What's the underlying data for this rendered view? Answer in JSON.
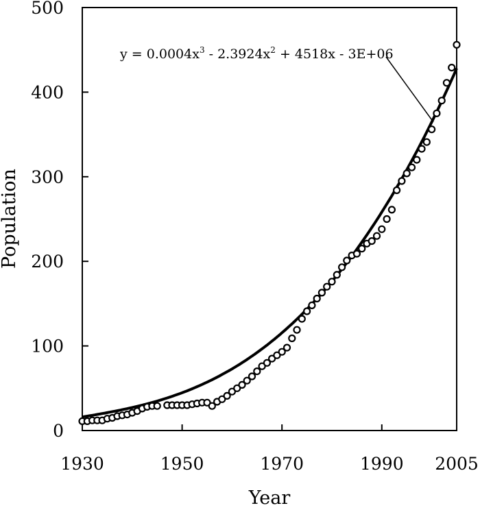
{
  "chart_data": {
    "type": "scatter",
    "xlabel": "Year",
    "ylabel": "Population",
    "xlim": [
      1930,
      2005
    ],
    "ylim": [
      0,
      500
    ],
    "x_ticks": [
      1930,
      1950,
      1970,
      1990,
      2005
    ],
    "y_ticks": [
      0,
      100,
      200,
      300,
      400,
      500
    ],
    "grid": false,
    "legend": "none",
    "series": [
      {
        "marker": "open-circle",
        "x": [
          1930,
          1931,
          1932,
          1933,
          1934,
          1935,
          1936,
          1937,
          1938,
          1939,
          1940,
          1941,
          1942,
          1943,
          1944,
          1945,
          1947,
          1948,
          1949,
          1950,
          1951,
          1952,
          1953,
          1954,
          1955,
          1956,
          1957,
          1958,
          1959,
          1960,
          1961,
          1962,
          1963,
          1964,
          1965,
          1966,
          1967,
          1968,
          1969,
          1970,
          1971,
          1972,
          1973,
          1974,
          1975,
          1976,
          1977,
          1978,
          1979,
          1980,
          1981,
          1982,
          1983,
          1984,
          1985,
          1986,
          1987,
          1988,
          1989,
          1990,
          1991,
          1992,
          1993,
          1994,
          1995,
          1996,
          1997,
          1998,
          1999,
          2000,
          2001,
          2002,
          2003,
          2004,
          2005
        ],
        "y": [
          11,
          11,
          12,
          12,
          12,
          14,
          15,
          17,
          18,
          19,
          21,
          23,
          26,
          28,
          29,
          29,
          30,
          30,
          30,
          30,
          30,
          31,
          32,
          33,
          33,
          29,
          34,
          37,
          41,
          46,
          50,
          54,
          59,
          64,
          70,
          76,
          80,
          85,
          89,
          93,
          98,
          109,
          119,
          132,
          141,
          148,
          156,
          163,
          170,
          176,
          184,
          193,
          201,
          207,
          209,
          215,
          221,
          224,
          230,
          238,
          250,
          261,
          284,
          295,
          304,
          311,
          320,
          333,
          341,
          356,
          375,
          390,
          411,
          429,
          456
        ]
      }
    ],
    "trendline": {
      "type": "polynomial",
      "order": 3,
      "coefficients": [
        0.0004,
        -2.3924,
        4518,
        -3000000
      ],
      "start_value": 16,
      "end_value": 428,
      "equation_text": "y = 0.0004x",
      "eq_sup1": "3",
      "eq_mid": " - 2.3924x",
      "eq_sup2": "2",
      "eq_end": " + 4518x - 3E+06"
    }
  }
}
